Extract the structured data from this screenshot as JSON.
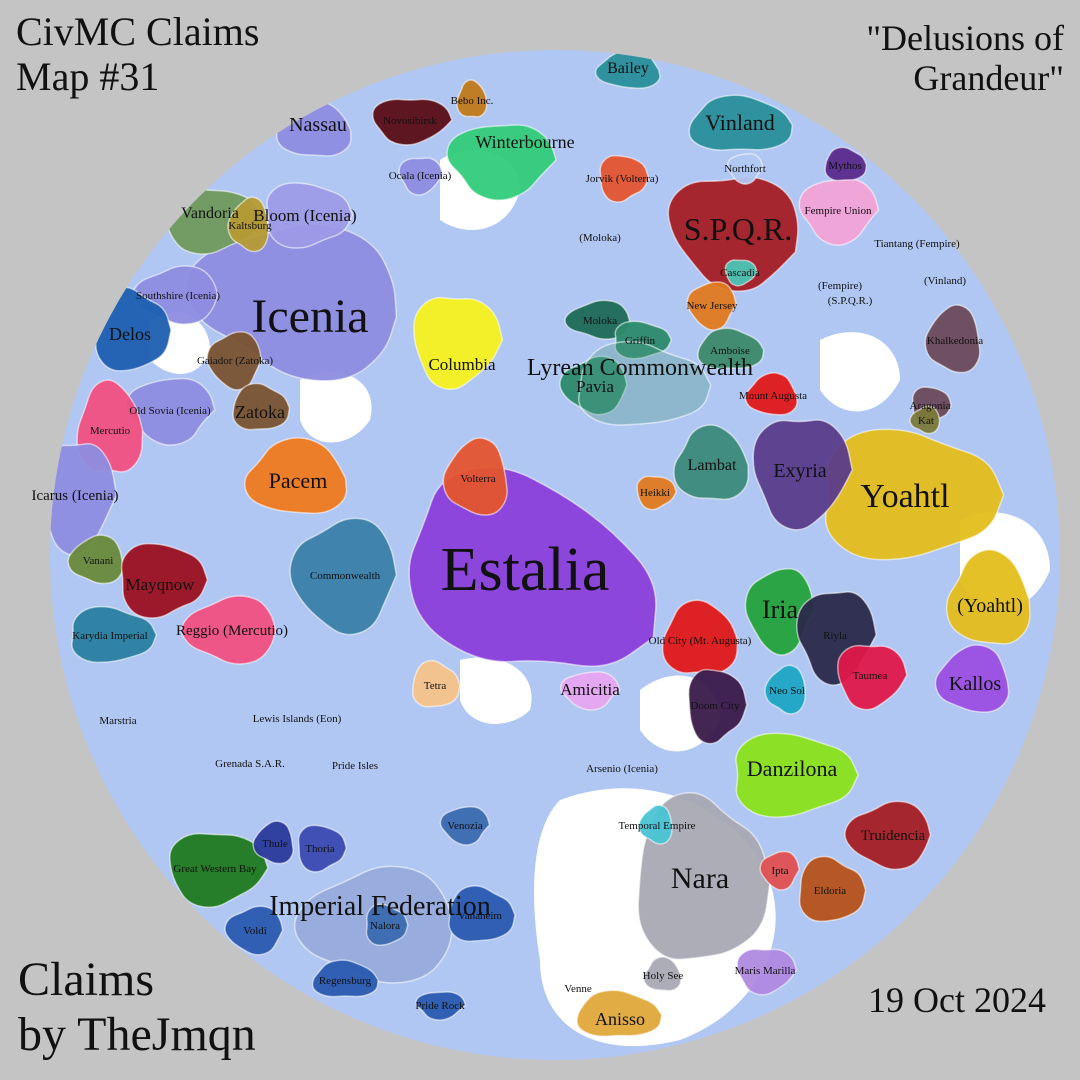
{
  "header": {
    "title_line1": "CivMC Claims",
    "title_line2": "Map #31",
    "subtitle_line1": "\"Delusions of",
    "subtitle_line2": "Grandeur\""
  },
  "footer": {
    "credit_line1": "Claims",
    "credit_line2": "by TheJmqn",
    "date": "19 Oct 2024"
  },
  "colors": {
    "background": "#c4c4c4",
    "ocean": "#b1c7f3",
    "land": "#ffffff"
  },
  "nations": [
    {
      "name": "Estalia",
      "color": "#8a3fd9",
      "size": "xl"
    },
    {
      "name": "Icenia",
      "color": "#8e8de0",
      "size": "xl"
    },
    {
      "name": "Yoahtl",
      "color": "#e4be1c",
      "size": "l"
    },
    {
      "name": "S.P.Q.R.",
      "color": "#a51d24",
      "size": "l"
    },
    {
      "name": "Nara",
      "color": "#a9a9b4",
      "size": "l"
    },
    {
      "name": "Iria",
      "color": "#23a23a",
      "size": "l"
    },
    {
      "name": "Vinland",
      "color": "#2a8f9a",
      "size": "m"
    },
    {
      "name": "Winterbourne",
      "color": "#33cc7a",
      "size": "m"
    },
    {
      "name": "Nassau",
      "color": "#8e8de0",
      "size": "m"
    },
    {
      "name": "Novosibirsk",
      "color": "#5a0e14",
      "size": "s"
    },
    {
      "name": "Bailey",
      "color": "#2a8f9a",
      "size": "m"
    },
    {
      "name": "Vandoria",
      "color": "#6f9a5c",
      "size": "m"
    },
    {
      "name": "Kaltsburg",
      "color": "#b59b34",
      "size": "s"
    },
    {
      "name": "Bloom (Icenia)",
      "color": "#9d9be6",
      "size": "m"
    },
    {
      "name": "Southshire (Icenia)",
      "color": "#8e8de0",
      "size": "s"
    },
    {
      "name": "Delos",
      "color": "#1e5fb0",
      "size": "m"
    },
    {
      "name": "Gaiador (Zatoka)",
      "color": "#7a5331",
      "size": "s"
    },
    {
      "name": "Zatoka",
      "color": "#7a5331",
      "size": "m"
    },
    {
      "name": "Old Sovia (Icenia)",
      "color": "#8e8de0",
      "size": "s"
    },
    {
      "name": "Mercutio",
      "color": "#f0507f",
      "size": "s"
    },
    {
      "name": "Icarus (Icenia)",
      "color": "#8e8de0",
      "size": "m"
    },
    {
      "name": "Pacem",
      "color": "#f07a1e",
      "size": "m"
    },
    {
      "name": "Columbia",
      "color": "#f7f21e",
      "size": "m"
    },
    {
      "name": "Volterra",
      "color": "#e4542e",
      "size": "s"
    },
    {
      "name": "Jorvik (Volterra)",
      "color": "#e4542e",
      "size": "s"
    },
    {
      "name": "Moloka",
      "color": "#1e6a55",
      "size": "s"
    },
    {
      "name": "Griffin",
      "color": "#2c8a6a",
      "size": "s"
    },
    {
      "name": "Pavia",
      "color": "#2c8a6a",
      "size": "m"
    },
    {
      "name": "Lyrean Commonwealth",
      "color": "#4c9a86",
      "size": "l"
    },
    {
      "name": "New Jersey",
      "color": "#e07a20",
      "size": "s"
    },
    {
      "name": "Amboise",
      "color": "#3c8a6a",
      "size": "s"
    },
    {
      "name": "Fempire Union",
      "color": "#f3a3d6",
      "size": "s"
    },
    {
      "name": "Lambat",
      "color": "#3c8a7a",
      "size": "m"
    },
    {
      "name": "Exyria",
      "color": "#5a3c8a",
      "size": "m"
    },
    {
      "name": "Mount Augusta",
      "color": "#e01818",
      "size": "s"
    },
    {
      "name": "Heikki",
      "color": "#e07a20",
      "size": "s"
    },
    {
      "name": "Vanani",
      "color": "#6a8a3a",
      "size": "s"
    },
    {
      "name": "Mayqnow",
      "color": "#9a1020",
      "size": "m"
    },
    {
      "name": "Reggio (Mercutio)",
      "color": "#f0507f",
      "size": "m"
    },
    {
      "name": "Karydia Imperial",
      "color": "#2a7fa0",
      "size": "s"
    },
    {
      "name": "Commonwealth",
      "color": "#3a80a8",
      "size": "s"
    },
    {
      "name": "Tetra",
      "color": "#f5c389",
      "size": "s"
    },
    {
      "name": "Amicitia",
      "color": "#e6a6f0",
      "size": "m"
    },
    {
      "name": "Old City (Mt. Augusta)",
      "color": "#e01818",
      "size": "s"
    },
    {
      "name": "Riyla",
      "color": "#2a2a4a",
      "size": "s"
    },
    {
      "name": "(Yoahtl)",
      "color": "#e4be1c",
      "size": "m"
    },
    {
      "name": "Taumea",
      "color": "#e0184a",
      "size": "s"
    },
    {
      "name": "Kallos",
      "color": "#9a4fe0",
      "size": "m"
    },
    {
      "name": "Doom City",
      "color": "#3a1a4a",
      "size": "s"
    },
    {
      "name": "Neo Sol",
      "color": "#1ea6c4",
      "size": "s"
    },
    {
      "name": "Danzilona",
      "color": "#8ae21a",
      "size": "m"
    },
    {
      "name": "Truidencia",
      "color": "#a51d24",
      "size": "s"
    },
    {
      "name": "Eldoria",
      "color": "#b5521a",
      "size": "s"
    },
    {
      "name": "Ipta",
      "color": "#e05050",
      "size": "s"
    },
    {
      "name": "Anisso",
      "color": "#e0a83a",
      "size": "m"
    },
    {
      "name": "Marstria",
      "color": "#b1c7f3",
      "size": "s"
    },
    {
      "name": "Lewis Islands (Eon)",
      "color": "#b1c7f3",
      "size": "s"
    },
    {
      "name": "Grenada S.A.R.",
      "color": "#b1c7f3",
      "size": "s"
    },
    {
      "name": "Pride Isles",
      "color": "#b1c7f3",
      "size": "s"
    },
    {
      "name": "Great Western Bay",
      "color": "#1f7a1f",
      "size": "s"
    },
    {
      "name": "Thule",
      "color": "#2a3a9a",
      "size": "s"
    },
    {
      "name": "Thoria",
      "color": "#3a4ab0",
      "size": "s"
    },
    {
      "name": "Imperial Federation",
      "color": "#6a7ab8",
      "size": "l"
    },
    {
      "name": "Nalora",
      "color": "#3a6ab0",
      "size": "s"
    },
    {
      "name": "Voldi",
      "color": "#2a5ab0",
      "size": "s"
    },
    {
      "name": "Vanaheim",
      "color": "#2a5ab0",
      "size": "s"
    },
    {
      "name": "Venozia",
      "color": "#3a6ab0",
      "size": "s"
    },
    {
      "name": "Regensburg",
      "color": "#2a5ab0",
      "size": "s"
    },
    {
      "name": "Pride Rock",
      "color": "#2a5ab0",
      "size": "s"
    },
    {
      "name": "Holy See",
      "color": "#a9a9b4",
      "size": "s"
    },
    {
      "name": "Maris Marilla",
      "color": "#b08ae0",
      "size": "s"
    },
    {
      "name": "Venne",
      "color": "#b1c7f3",
      "size": "s"
    },
    {
      "name": "Arsenio (Icenia)",
      "color": "#b1c7f3",
      "size": "s"
    },
    {
      "name": "Temporal Empire",
      "color": "#4ac4d4",
      "size": "s"
    },
    {
      "name": "Tiantang (Fempire)",
      "color": "#b1c7f3",
      "size": "s"
    },
    {
      "name": "(Vinland)",
      "color": "#b1c7f3",
      "size": "s"
    },
    {
      "name": "(Fempire)",
      "color": "#b1c7f3",
      "size": "s"
    },
    {
      "name": "(S.P.Q.R.)",
      "color": "#b1c7f3",
      "size": "s"
    },
    {
      "name": "Mythos",
      "color": "#5a2a8a",
      "size": "s"
    },
    {
      "name": "Northfort",
      "color": "#b1c7f3",
      "size": "s"
    },
    {
      "name": "Bebo Inc.",
      "color": "#c07a1a",
      "size": "s"
    },
    {
      "name": "Ocala (Icenia)",
      "color": "#8e8de0",
      "size": "s"
    },
    {
      "name": "(Moloka)",
      "color": "#b1c7f3",
      "size": "s"
    },
    {
      "name": "Cascadia",
      "color": "#4ac4b4",
      "size": "s"
    },
    {
      "name": "Khalkedonia",
      "color": "#6a4a5a",
      "size": "s"
    },
    {
      "name": "Aragonia",
      "color": "#6a4a5a",
      "size": "s"
    },
    {
      "name": "Kat",
      "color": "#7a7a3a",
      "size": "s"
    }
  ]
}
